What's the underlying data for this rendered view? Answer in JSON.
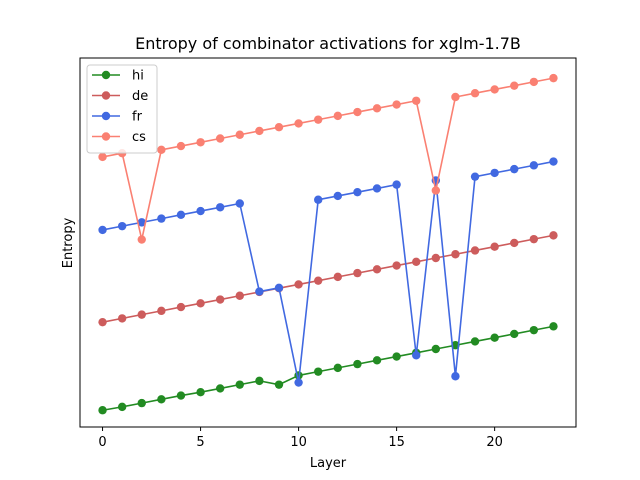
{
  "chart_data": {
    "type": "line",
    "title": "Entropy of combinator activations for xglm-1.7B",
    "xlabel": "Layer",
    "ylabel": "Entropy",
    "xlim": [
      -1.15,
      24.15
    ],
    "ylim": [
      -0.4,
      8.4
    ],
    "xticks": [
      0,
      5,
      10,
      15,
      20
    ],
    "yticks": [],
    "grid": false,
    "legend_position": "top-left",
    "x": [
      0,
      1,
      2,
      3,
      4,
      5,
      6,
      7,
      8,
      9,
      10,
      11,
      12,
      13,
      14,
      15,
      16,
      17,
      18,
      19,
      20,
      21,
      22,
      23
    ],
    "series": [
      {
        "name": "hi",
        "color": "#228b22",
        "values": [
          0.0,
          0.08,
          0.17,
          0.26,
          0.35,
          0.43,
          0.52,
          0.61,
          0.7,
          0.61,
          0.83,
          0.92,
          1.01,
          1.1,
          1.19,
          1.28,
          1.37,
          1.46,
          1.55,
          1.64,
          1.73,
          1.82,
          1.91,
          2.0
        ]
      },
      {
        "name": "de",
        "color": "#cd5c5c",
        "values": [
          2.1,
          2.19,
          2.28,
          2.37,
          2.46,
          2.55,
          2.64,
          2.73,
          2.82,
          2.91,
          3.0,
          3.09,
          3.18,
          3.27,
          3.36,
          3.45,
          3.54,
          3.63,
          3.72,
          3.81,
          3.9,
          3.99,
          4.08,
          4.17
        ]
      },
      {
        "name": "fr",
        "color": "#4169e1",
        "values": [
          4.3,
          4.39,
          4.48,
          4.57,
          4.66,
          4.75,
          4.84,
          4.93,
          2.83,
          2.92,
          0.66,
          5.02,
          5.11,
          5.2,
          5.29,
          5.38,
          1.31,
          5.48,
          0.81,
          5.57,
          5.66,
          5.75,
          5.84,
          5.93
        ]
      },
      {
        "name": "cs",
        "color": "#fa8072",
        "values": [
          6.04,
          6.13,
          4.07,
          6.21,
          6.3,
          6.39,
          6.48,
          6.57,
          6.66,
          6.75,
          6.84,
          6.93,
          7.02,
          7.11,
          7.2,
          7.29,
          7.38,
          5.24,
          7.47,
          7.56,
          7.65,
          7.74,
          7.83,
          7.92
        ]
      }
    ]
  }
}
